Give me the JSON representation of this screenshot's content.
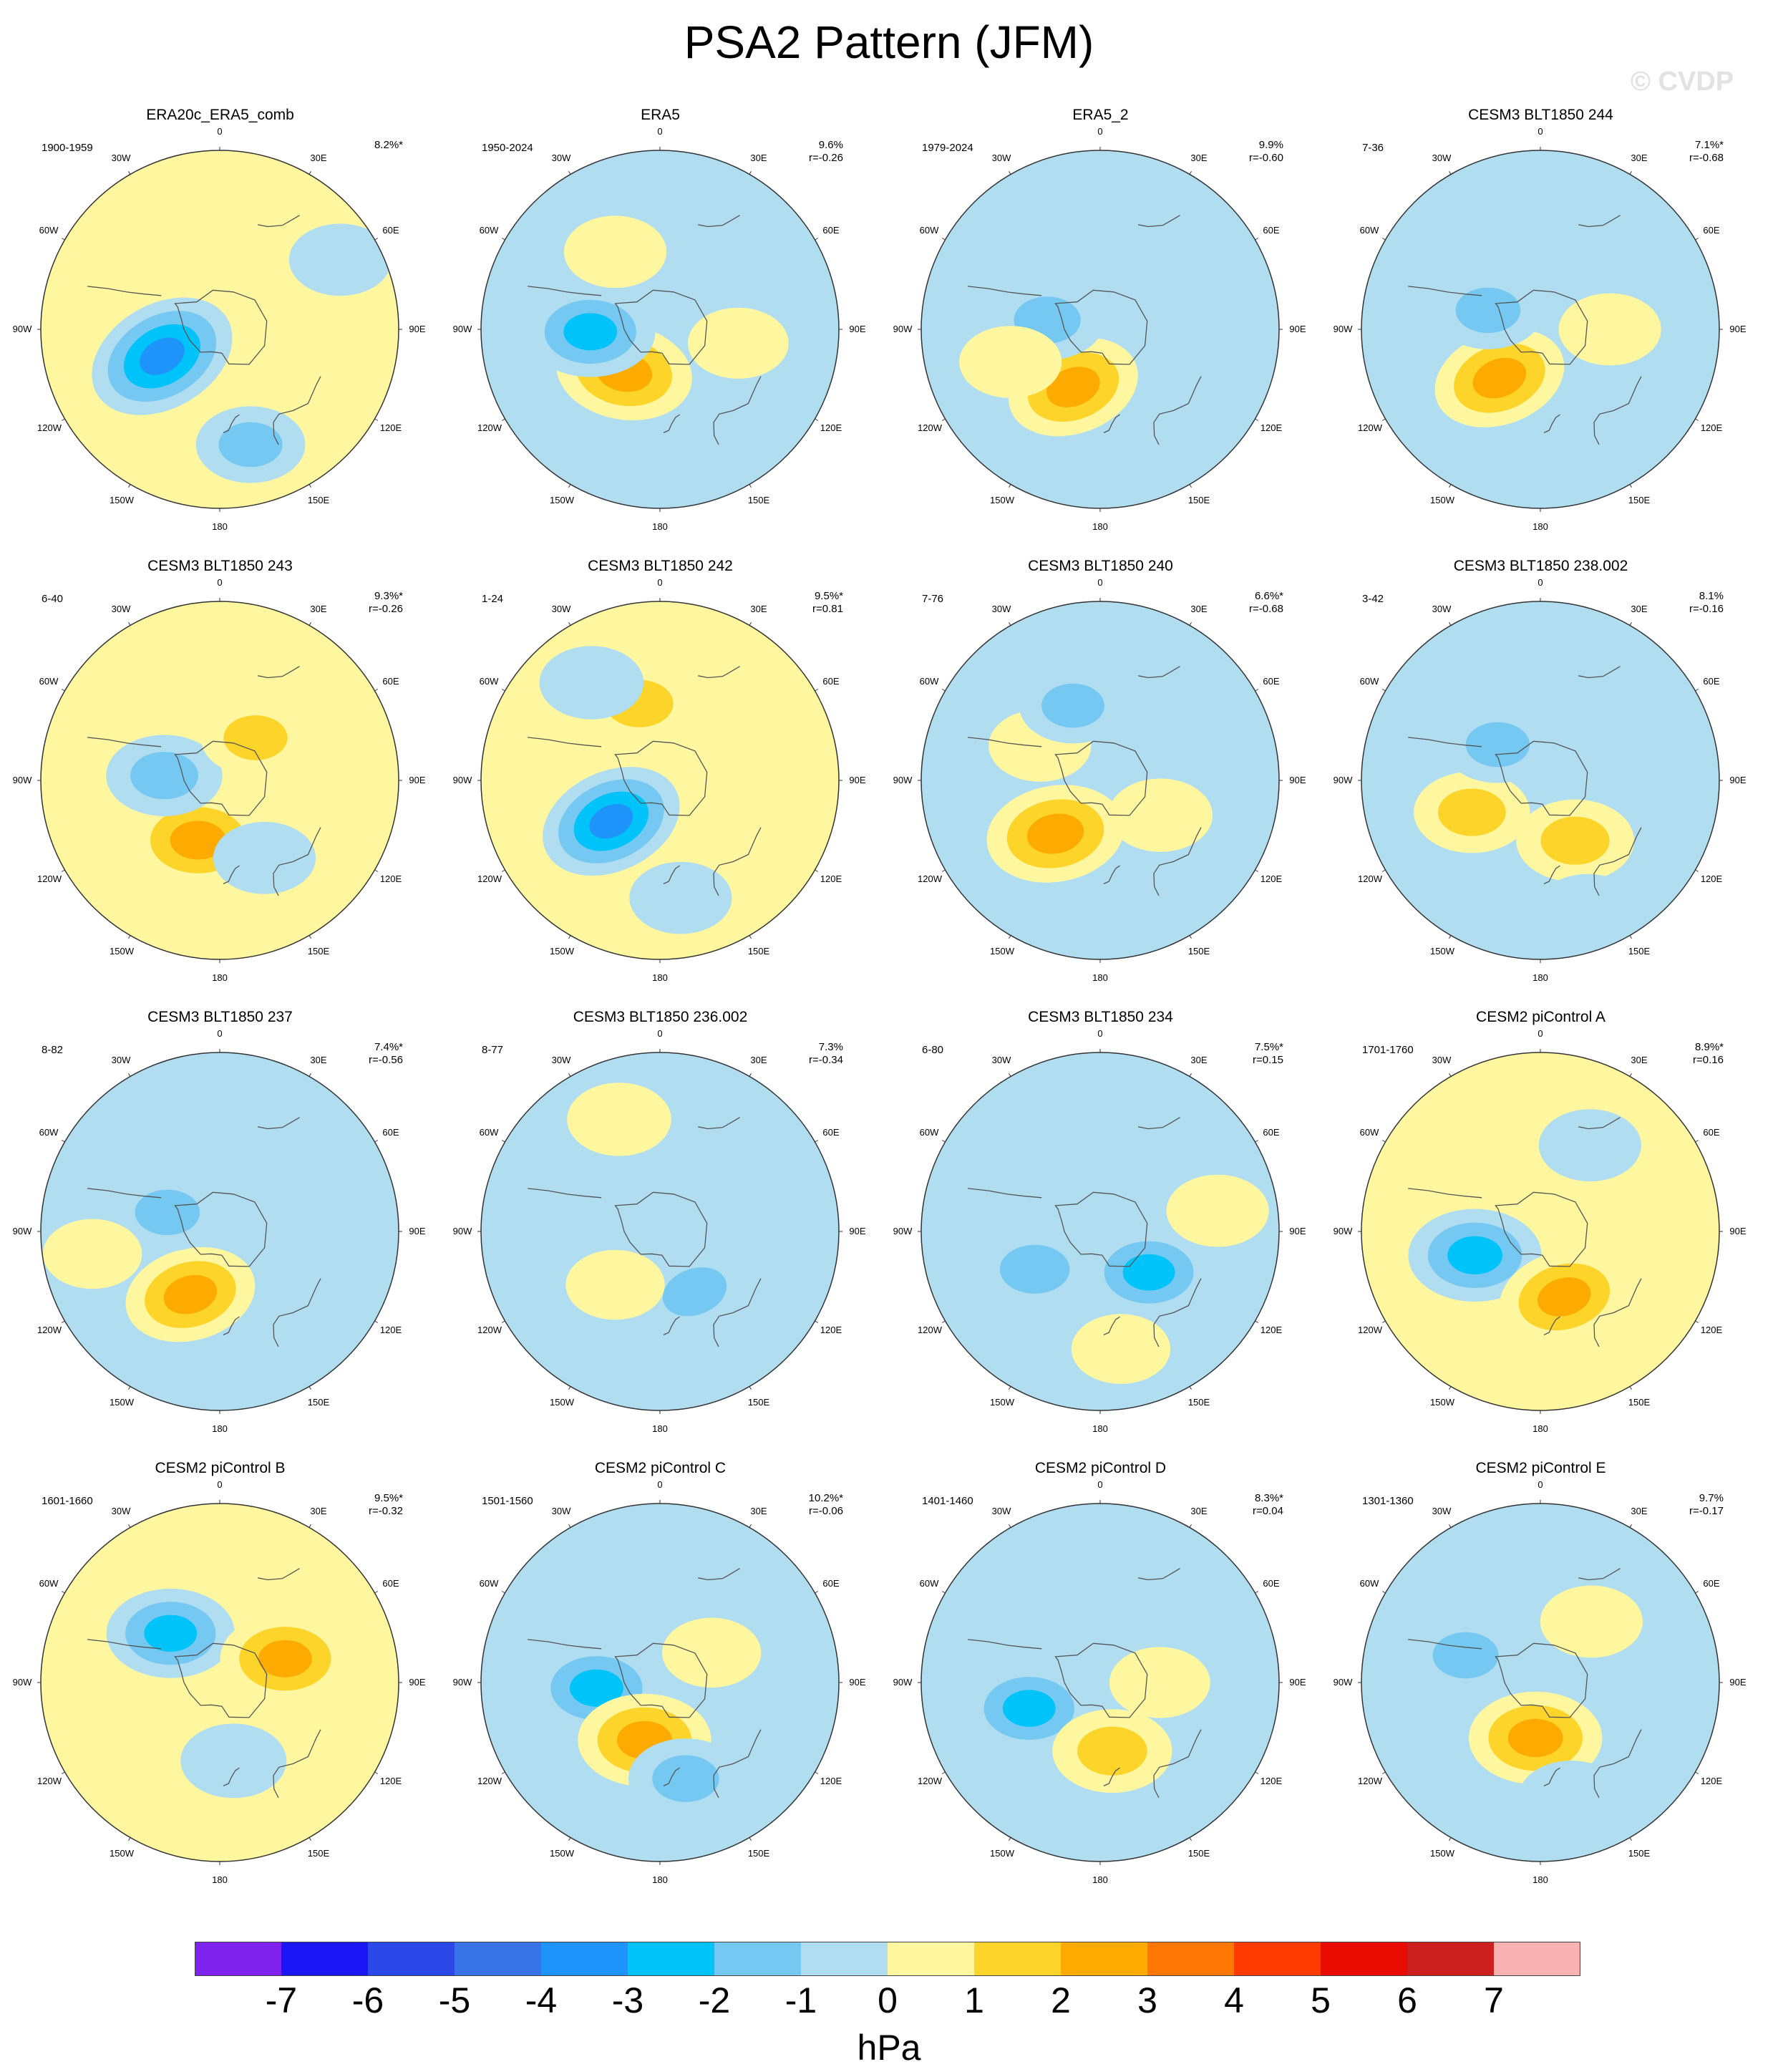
{
  "title": "PSA2 Pattern (JFM)",
  "watermark": "© CVDP",
  "colors": {
    "levels": [
      "#7f22ee",
      "#1a16f5",
      "#2b48e8",
      "#3873e8",
      "#1e94fb",
      "#00c3fa",
      "#74c8f1",
      "#b1ddf1",
      "#fff7a0",
      "#fdd42a",
      "#fdab00",
      "#ff7806",
      "#ff3b00",
      "#ea0c00",
      "#cc1f1f",
      "#fbb2b2"
    ],
    "land": "#555555",
    "rim": "#333333"
  },
  "lon_labels": [
    "0",
    "30E",
    "60E",
    "90E",
    "120E",
    "150E",
    "180",
    "150W",
    "120W",
    "90W",
    "60W",
    "30W"
  ],
  "colorbar": {
    "ticks": [
      "-7",
      "-6",
      "-5",
      "-4",
      "-3",
      "-2",
      "-1",
      "0",
      "1",
      "2",
      "3",
      "4",
      "5",
      "6",
      "7"
    ],
    "unit": "hPa"
  },
  "chart_data": {
    "type": "heatmap",
    "projection": "south-polar stereographic",
    "variable": "sea level pressure regression",
    "units": "hPa",
    "levels": [
      -7,
      -6,
      -5,
      -4,
      -3,
      -2,
      -1,
      0,
      1,
      2,
      3,
      4,
      5,
      6,
      7
    ],
    "panels": [
      {
        "title": "ERA20c_ERA5_comb",
        "period": "1900-1959",
        "pct": "8.2%*",
        "corr": "",
        "base": "#fff7a0",
        "features": [
          {
            "lon": -115,
            "lat": -58,
            "v": -3.6,
            "rot": -30
          },
          {
            "lon": 165,
            "lat": -30,
            "v": -1.2,
            "rot": 0
          },
          {
            "lon": 60,
            "lat": -20,
            "v": -0.8,
            "rot": 0
          }
        ]
      },
      {
        "title": "ERA5",
        "period": "1950-2024",
        "pct": "9.6%",
        "corr": "r=-0.26",
        "base": "#b1ddf1",
        "features": [
          {
            "lon": -140,
            "lat": -62,
            "v": 2.8,
            "rot": 10
          },
          {
            "lon": -92,
            "lat": -55,
            "v": -2.4,
            "rot": 0
          },
          {
            "lon": -30,
            "lat": -45,
            "v": 0.8,
            "rot": 0
          },
          {
            "lon": 100,
            "lat": -50,
            "v": 0.7,
            "rot": 0
          }
        ]
      },
      {
        "title": "ERA5_2",
        "period": "1979-2024",
        "pct": "9.9%",
        "corr": "r=-0.60",
        "base": "#b1ddf1",
        "features": [
          {
            "lon": -155,
            "lat": -58,
            "v": 2.6,
            "rot": -20
          },
          {
            "lon": -80,
            "lat": -63,
            "v": -1.5,
            "rot": 0
          },
          {
            "lon": -110,
            "lat": -42,
            "v": 0.8,
            "rot": 0
          }
        ]
      },
      {
        "title": "CESM3 BLT1850 244",
        "period": "7-36",
        "pct": "7.1%*",
        "corr": "r=-0.68",
        "base": "#b1ddf1",
        "features": [
          {
            "lon": -140,
            "lat": -58,
            "v": 2.6,
            "rot": -20
          },
          {
            "lon": -70,
            "lat": -62,
            "v": -1.3,
            "rot": 0
          },
          {
            "lon": 90,
            "lat": -55,
            "v": 0.8,
            "rot": 0
          }
        ]
      },
      {
        "title": "CESM3 BLT1850 243",
        "period": "6-40",
        "pct": "9.3%*",
        "corr": "r=-0.26",
        "base": "#fff7a0",
        "features": [
          {
            "lon": -160,
            "lat": -58,
            "v": 2.7,
            "rot": 0
          },
          {
            "lon": -85,
            "lat": -62,
            "v": -1.6,
            "rot": 0
          },
          {
            "lon": 40,
            "lat": -62,
            "v": 1.2,
            "rot": 0
          },
          {
            "lon": 150,
            "lat": -45,
            "v": -0.8,
            "rot": 0
          }
        ]
      },
      {
        "title": "CESM3 BLT1850 242",
        "period": "1-24",
        "pct": "9.5%*",
        "corr": "r=0.81",
        "base": "#fff7a0",
        "features": [
          {
            "lon": -130,
            "lat": -58,
            "v": -3.2,
            "rot": -25
          },
          {
            "lon": -15,
            "lat": -50,
            "v": 1.6,
            "rot": 0
          },
          {
            "lon": -35,
            "lat": -30,
            "v": -0.9,
            "rot": 0
          },
          {
            "lon": 170,
            "lat": -30,
            "v": -0.8,
            "rot": 0
          }
        ]
      },
      {
        "title": "CESM3 BLT1850 240",
        "period": "7-76",
        "pct": "6.6%*",
        "corr": "r=-0.68",
        "base": "#b1ddf1",
        "features": [
          {
            "lon": -140,
            "lat": -55,
            "v": 2.9,
            "rot": -10
          },
          {
            "lon": -60,
            "lat": -55,
            "v": 0.8,
            "rot": 0
          },
          {
            "lon": 120,
            "lat": -55,
            "v": 0.9,
            "rot": 0
          },
          {
            "lon": -20,
            "lat": -50,
            "v": -1.1,
            "rot": 0
          }
        ]
      },
      {
        "title": "CESM3 BLT1850 238.002",
        "period": "3-42",
        "pct": "8.1%",
        "corr": "r=-0.16",
        "base": "#b1ddf1",
        "features": [
          {
            "lon": -115,
            "lat": -52,
            "v": 1.6,
            "rot": 0
          },
          {
            "lon": 150,
            "lat": -55,
            "v": 1.7,
            "rot": 0
          },
          {
            "lon": -50,
            "lat": -62,
            "v": -1.2,
            "rot": 0
          },
          {
            "lon": 160,
            "lat": -20,
            "v": -1.0,
            "rot": 0
          }
        ]
      },
      {
        "title": "CESM3 BLT1850 237",
        "period": "8-82",
        "pct": "7.4%*",
        "corr": "r=-0.56",
        "base": "#b1ddf1",
        "features": [
          {
            "lon": -155,
            "lat": -55,
            "v": 2.5,
            "rot": -15
          },
          {
            "lon": -70,
            "lat": -62,
            "v": -1.3,
            "rot": 0
          },
          {
            "lon": -100,
            "lat": -25,
            "v": 0.6,
            "rot": 0
          }
        ]
      },
      {
        "title": "CESM3 BLT1850 236.002",
        "period": "8-77",
        "pct": "7.3%",
        "corr": "r=-0.34",
        "base": "#b1ddf1",
        "features": [
          {
            "lon": 150,
            "lat": -55,
            "v": -1.4,
            "rot": -20
          },
          {
            "lon": -140,
            "lat": -55,
            "v": 0.6,
            "rot": 0
          },
          {
            "lon": -20,
            "lat": -30,
            "v": 0.9,
            "rot": 0
          }
        ]
      },
      {
        "title": "CESM3 BLT1850 234",
        "period": "6-80",
        "pct": "7.5%*",
        "corr": "r=0.15",
        "base": "#b1ddf1",
        "features": [
          {
            "lon": -120,
            "lat": -52,
            "v": -1.8,
            "rot": 0
          },
          {
            "lon": 130,
            "lat": -58,
            "v": -2.2,
            "rot": 0
          },
          {
            "lon": 80,
            "lat": -30,
            "v": 0.8,
            "rot": 0
          },
          {
            "lon": 170,
            "lat": -30,
            "v": 0.6,
            "rot": 0
          }
        ]
      },
      {
        "title": "CESM2 piControl A",
        "period": "1701-1760",
        "pct": "8.9%*",
        "corr": "r=0.16",
        "base": "#fff7a0",
        "features": [
          {
            "lon": -110,
            "lat": -55,
            "v": -2.6,
            "rot": 0
          },
          {
            "lon": 160,
            "lat": -55,
            "v": 2.5,
            "rot": -15
          },
          {
            "lon": 30,
            "lat": -40,
            "v": -0.8,
            "rot": 0
          }
        ]
      },
      {
        "title": "CESM2 piControl B",
        "period": "1601-1660",
        "pct": "9.5%*",
        "corr": "r=-0.32",
        "base": "#fff7a0",
        "features": [
          {
            "lon": -45,
            "lat": -55,
            "v": -2.3,
            "rot": 0
          },
          {
            "lon": 70,
            "lat": -55,
            "v": 2.4,
            "rot": 0
          },
          {
            "lon": 170,
            "lat": -50,
            "v": -1.0,
            "rot": 0
          }
        ]
      },
      {
        "title": "CESM2 piControl C",
        "period": "1501-1560",
        "pct": "10.2%*",
        "corr": "r=-0.06",
        "base": "#b1ddf1",
        "features": [
          {
            "lon": -95,
            "lat": -58,
            "v": -2.4,
            "rot": 0
          },
          {
            "lon": -165,
            "lat": -60,
            "v": 2.6,
            "rot": 0
          },
          {
            "lon": 165,
            "lat": -40,
            "v": -1.5,
            "rot": 0
          },
          {
            "lon": 60,
            "lat": -60,
            "v": 0.6,
            "rot": 0
          }
        ]
      },
      {
        "title": "CESM2 piControl D",
        "period": "1401-1460",
        "pct": "8.3%*",
        "corr": "r=0.04",
        "base": "#b1ddf1",
        "features": [
          {
            "lon": -110,
            "lat": -52,
            "v": -2.3,
            "rot": 0
          },
          {
            "lon": 170,
            "lat": -55,
            "v": 1.8,
            "rot": 0
          },
          {
            "lon": -20,
            "lat": -55,
            "v": -1.0,
            "rot": 0
          },
          {
            "lon": 90,
            "lat": -60,
            "v": 0.7,
            "rot": 0
          }
        ]
      },
      {
        "title": "CESM2 piControl E",
        "period": "1301-1360",
        "pct": "9.7%",
        "corr": "r=-0.17",
        "base": "#b1ddf1",
        "features": [
          {
            "lon": -175,
            "lat": -62,
            "v": 2.6,
            "rot": 0
          },
          {
            "lon": -70,
            "lat": -50,
            "v": -1.4,
            "rot": 0
          },
          {
            "lon": 40,
            "lat": -50,
            "v": 0.8,
            "rot": 0
          },
          {
            "lon": 165,
            "lat": -30,
            "v": -1.0,
            "rot": 0
          }
        ]
      }
    ]
  }
}
